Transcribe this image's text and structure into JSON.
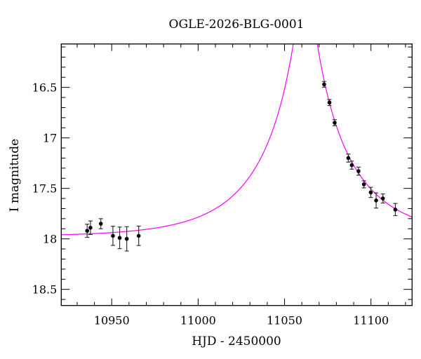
{
  "chart_data": {
    "type": "scatter",
    "title": "OGLE-2026-BLG-0001",
    "xlabel": "HJD - 2450000",
    "ylabel": "I magnitude",
    "xlim": [
      10920.8,
      11123.8
    ],
    "ylim": [
      18.66,
      16.07
    ],
    "y_inverted": true,
    "grid": false,
    "x_ticks": [
      10950,
      11000,
      11050,
      11100
    ],
    "x_tick_labels": [
      "10950",
      "11000",
      "11050",
      "11100"
    ],
    "y_ticks": [
      16.5,
      17,
      17.5,
      18,
      18.5
    ],
    "y_tick_labels": [
      "16.5",
      "17",
      "17.5",
      "18",
      "18.5"
    ],
    "series": [
      {
        "kind": "points-with-errorbars",
        "color": "#000000",
        "x": [
          10935.8,
          10937.7,
          10943.7,
          10950.7,
          10954.6,
          10958.7,
          10965.6,
          11072.9,
          11076.0,
          11079.0,
          11086.9,
          11088.9,
          11092.8,
          11095.9,
          11099.9,
          11103.0,
          11106.9,
          11114.1
        ],
        "y": [
          17.92,
          17.89,
          17.85,
          17.97,
          17.99,
          18.0,
          17.97,
          16.47,
          16.65,
          16.85,
          17.2,
          17.27,
          17.33,
          17.46,
          17.54,
          17.62,
          17.6,
          17.71
        ],
        "yerr": [
          0.065,
          0.067,
          0.05,
          0.095,
          0.107,
          0.12,
          0.096,
          0.028,
          0.03,
          0.03,
          0.04,
          0.04,
          0.04,
          0.035,
          0.05,
          0.075,
          0.045,
          0.06
        ]
      },
      {
        "kind": "model-curve",
        "color": "#ff00ff"
      }
    ]
  }
}
